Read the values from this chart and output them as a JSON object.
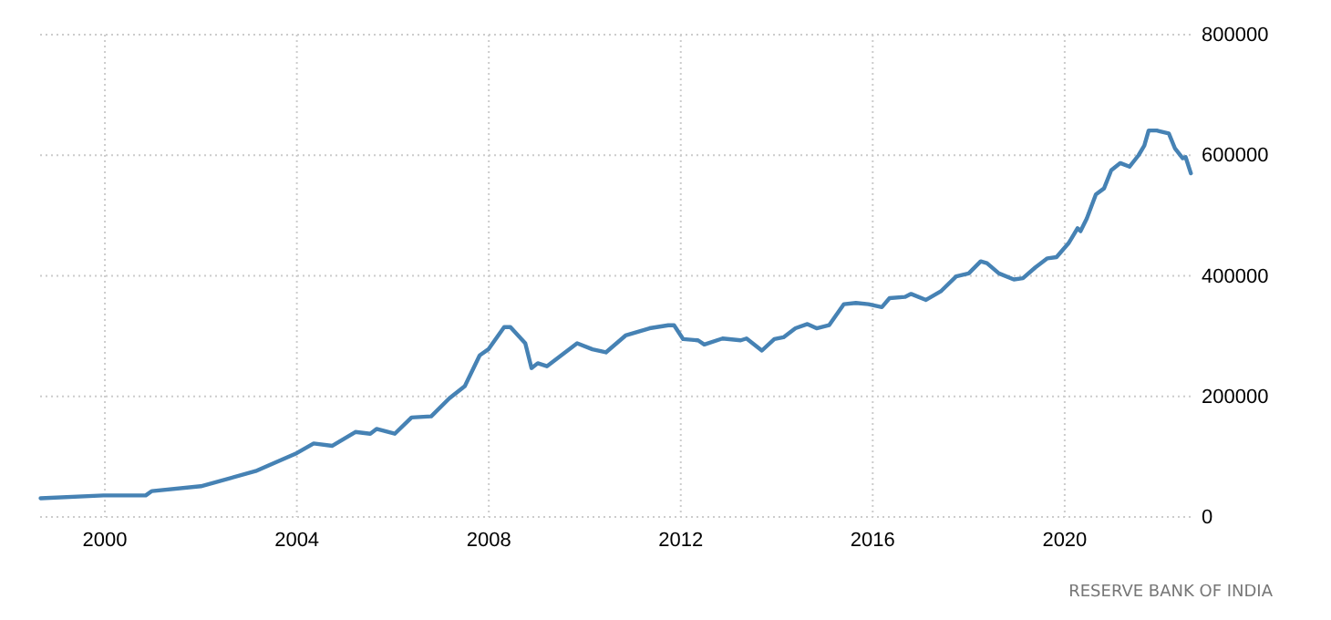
{
  "chart_data": {
    "type": "line",
    "x": [
      1998.66,
      1999.97,
      2000.85,
      2000.98,
      2002.0,
      2003.14,
      2004.0,
      2004.35,
      2004.74,
      2005.22,
      2005.53,
      2005.66,
      2006.04,
      2006.39,
      2006.8,
      2007.18,
      2007.5,
      2007.81,
      2007.99,
      2008.32,
      2008.45,
      2008.76,
      2008.89,
      2009.02,
      2009.21,
      2009.84,
      2010.16,
      2010.44,
      2010.85,
      2011.35,
      2011.74,
      2011.86,
      2012.05,
      2012.36,
      2012.49,
      2012.87,
      2013.25,
      2013.37,
      2013.69,
      2013.95,
      2014.14,
      2014.39,
      2014.64,
      2014.83,
      2015.09,
      2015.4,
      2015.65,
      2015.91,
      2016.19,
      2016.35,
      2016.67,
      2016.8,
      2017.11,
      2017.43,
      2017.74,
      2018.0,
      2018.25,
      2018.38,
      2018.63,
      2018.94,
      2019.13,
      2019.39,
      2019.64,
      2019.83,
      2020.08,
      2020.27,
      2020.33,
      2020.46,
      2020.65,
      2020.82,
      2020.97,
      2021.16,
      2021.35,
      2021.54,
      2021.66,
      2021.75,
      2021.92,
      2022.17,
      2022.3,
      2022.46,
      2022.52,
      2022.63
    ],
    "series": [
      {
        "color": "#4682b4",
        "values": [
          31000,
          35700,
          35700,
          43000,
          51000,
          76000,
          106000,
          122000,
          118000,
          141000,
          138000,
          146000,
          138000,
          165000,
          167000,
          197000,
          217000,
          268000,
          278000,
          315000,
          315000,
          288000,
          247000,
          255000,
          250000,
          288000,
          278000,
          273000,
          301000,
          313000,
          318000,
          318000,
          295000,
          293000,
          286000,
          296000,
          293000,
          296000,
          276000,
          295000,
          298000,
          313000,
          320000,
          313000,
          318000,
          353000,
          355000,
          353000,
          348000,
          363000,
          365000,
          370000,
          360000,
          375000,
          399000,
          404000,
          424000,
          421000,
          404000,
          394000,
          396000,
          414000,
          429000,
          431000,
          454000,
          479000,
          474000,
          495000,
          535000,
          545000,
          575000,
          587000,
          581000,
          600000,
          616000,
          641000,
          641000,
          636000,
          611000,
          595000,
          597000,
          570000
        ]
      }
    ],
    "xlim": [
      1998.65,
      2022.7
    ],
    "xticks": [
      2000,
      2004,
      2008,
      2012,
      2016,
      2020
    ],
    "ylim": [
      0,
      800000
    ],
    "yticks": [
      0,
      200000,
      400000,
      600000,
      800000
    ],
    "grid": true,
    "line_style": "solid",
    "annotations": [
      "RESERVE BANK OF INDIA"
    ]
  }
}
